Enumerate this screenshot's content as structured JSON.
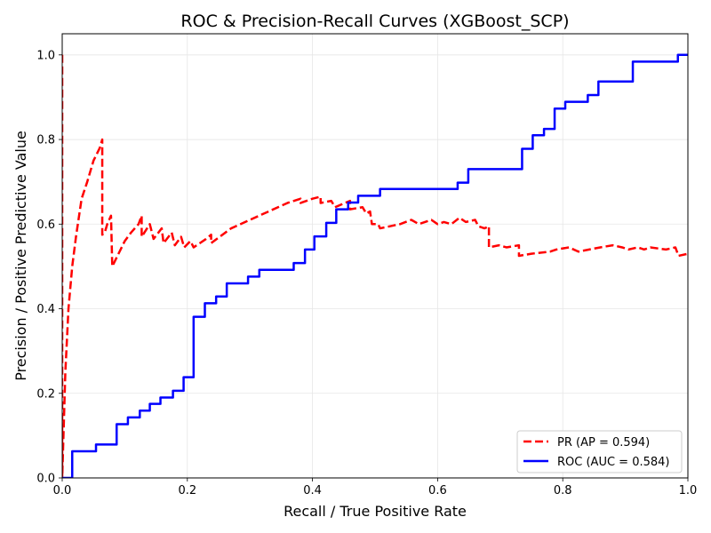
{
  "chart_data": {
    "type": "line",
    "title": "ROC & Precision-Recall Curves (XGBoost_SCP)",
    "xlabel": "Recall / True Positive Rate",
    "ylabel": "Precision / Positive Predictive Value",
    "xlim": [
      0.0,
      1.0
    ],
    "ylim": [
      0.0,
      1.05
    ],
    "xticks": [
      "0.0",
      "0.2",
      "0.4",
      "0.6",
      "0.8",
      "1.0"
    ],
    "yticks": [
      "0.0",
      "0.2",
      "0.4",
      "0.6",
      "0.8",
      "1.0"
    ],
    "grid": true,
    "legend_position": "lower right",
    "series": [
      {
        "name": "PR (AP = 0.594)",
        "color": "#ff0000",
        "style": "dashed",
        "points": [
          [
            0.0,
            1.0
          ],
          [
            0.0,
            0.0
          ],
          [
            0.005,
            0.25
          ],
          [
            0.01,
            0.4
          ],
          [
            0.016,
            0.5
          ],
          [
            0.022,
            0.57
          ],
          [
            0.031,
            0.66
          ],
          [
            0.04,
            0.7
          ],
          [
            0.05,
            0.75
          ],
          [
            0.06,
            0.78
          ],
          [
            0.064,
            0.8
          ],
          [
            0.064,
            0.575
          ],
          [
            0.068,
            0.58
          ],
          [
            0.072,
            0.6
          ],
          [
            0.078,
            0.62
          ],
          [
            0.08,
            0.5
          ],
          [
            0.09,
            0.53
          ],
          [
            0.1,
            0.56
          ],
          [
            0.11,
            0.58
          ],
          [
            0.122,
            0.6
          ],
          [
            0.127,
            0.62
          ],
          [
            0.127,
            0.57
          ],
          [
            0.14,
            0.6
          ],
          [
            0.146,
            0.565
          ],
          [
            0.159,
            0.59
          ],
          [
            0.162,
            0.555
          ],
          [
            0.175,
            0.58
          ],
          [
            0.18,
            0.55
          ],
          [
            0.19,
            0.57
          ],
          [
            0.195,
            0.545
          ],
          [
            0.205,
            0.56
          ],
          [
            0.21,
            0.545
          ],
          [
            0.23,
            0.565
          ],
          [
            0.238,
            0.575
          ],
          [
            0.238,
            0.555
          ],
          [
            0.27,
            0.59
          ],
          [
            0.3,
            0.61
          ],
          [
            0.33,
            0.63
          ],
          [
            0.36,
            0.65
          ],
          [
            0.381,
            0.66
          ],
          [
            0.381,
            0.65
          ],
          [
            0.4,
            0.66
          ],
          [
            0.413,
            0.665
          ],
          [
            0.413,
            0.65
          ],
          [
            0.43,
            0.655
          ],
          [
            0.436,
            0.64
          ],
          [
            0.46,
            0.655
          ],
          [
            0.46,
            0.635
          ],
          [
            0.48,
            0.64
          ],
          [
            0.486,
            0.625
          ],
          [
            0.492,
            0.63
          ],
          [
            0.495,
            0.6
          ],
          [
            0.505,
            0.6
          ],
          [
            0.508,
            0.59
          ],
          [
            0.54,
            0.6
          ],
          [
            0.558,
            0.61
          ],
          [
            0.57,
            0.6
          ],
          [
            0.59,
            0.61
          ],
          [
            0.6,
            0.6
          ],
          [
            0.61,
            0.605
          ],
          [
            0.622,
            0.6
          ],
          [
            0.635,
            0.615
          ],
          [
            0.645,
            0.605
          ],
          [
            0.66,
            0.61
          ],
          [
            0.665,
            0.595
          ],
          [
            0.675,
            0.59
          ],
          [
            0.682,
            0.595
          ],
          [
            0.682,
            0.545
          ],
          [
            0.698,
            0.55
          ],
          [
            0.71,
            0.545
          ],
          [
            0.73,
            0.55
          ],
          [
            0.73,
            0.525
          ],
          [
            0.75,
            0.53
          ],
          [
            0.78,
            0.535
          ],
          [
            0.79,
            0.54
          ],
          [
            0.81,
            0.545
          ],
          [
            0.825,
            0.535
          ],
          [
            0.86,
            0.545
          ],
          [
            0.88,
            0.55
          ],
          [
            0.895,
            0.545
          ],
          [
            0.905,
            0.54
          ],
          [
            0.92,
            0.545
          ],
          [
            0.93,
            0.54
          ],
          [
            0.94,
            0.545
          ],
          [
            0.965,
            0.54
          ],
          [
            0.98,
            0.545
          ],
          [
            0.985,
            0.525
          ],
          [
            1.0,
            0.53
          ]
        ]
      },
      {
        "name": "ROC (AUC = 0.584)",
        "color": "#0000ff",
        "style": "solid",
        "points": [
          [
            0.0,
            0.0
          ],
          [
            0.016,
            0.0
          ],
          [
            0.016,
            0.063
          ],
          [
            0.054,
            0.063
          ],
          [
            0.054,
            0.079
          ],
          [
            0.087,
            0.079
          ],
          [
            0.087,
            0.127
          ],
          [
            0.105,
            0.127
          ],
          [
            0.105,
            0.143
          ],
          [
            0.124,
            0.143
          ],
          [
            0.124,
            0.159
          ],
          [
            0.14,
            0.159
          ],
          [
            0.14,
            0.175
          ],
          [
            0.157,
            0.175
          ],
          [
            0.157,
            0.19
          ],
          [
            0.177,
            0.19
          ],
          [
            0.177,
            0.206
          ],
          [
            0.194,
            0.206
          ],
          [
            0.194,
            0.238
          ],
          [
            0.21,
            0.238
          ],
          [
            0.21,
            0.381
          ],
          [
            0.228,
            0.381
          ],
          [
            0.228,
            0.413
          ],
          [
            0.246,
            0.413
          ],
          [
            0.246,
            0.429
          ],
          [
            0.263,
            0.429
          ],
          [
            0.263,
            0.46
          ],
          [
            0.297,
            0.46
          ],
          [
            0.297,
            0.476
          ],
          [
            0.315,
            0.476
          ],
          [
            0.315,
            0.492
          ],
          [
            0.37,
            0.492
          ],
          [
            0.37,
            0.508
          ],
          [
            0.388,
            0.508
          ],
          [
            0.388,
            0.54
          ],
          [
            0.403,
            0.54
          ],
          [
            0.403,
            0.571
          ],
          [
            0.422,
            0.571
          ],
          [
            0.422,
            0.603
          ],
          [
            0.438,
            0.603
          ],
          [
            0.438,
            0.635
          ],
          [
            0.457,
            0.635
          ],
          [
            0.457,
            0.651
          ],
          [
            0.473,
            0.651
          ],
          [
            0.473,
            0.667
          ],
          [
            0.508,
            0.667
          ],
          [
            0.508,
            0.683
          ],
          [
            0.632,
            0.683
          ],
          [
            0.632,
            0.698
          ],
          [
            0.649,
            0.698
          ],
          [
            0.649,
            0.73
          ],
          [
            0.735,
            0.73
          ],
          [
            0.735,
            0.778
          ],
          [
            0.752,
            0.778
          ],
          [
            0.752,
            0.81
          ],
          [
            0.77,
            0.81
          ],
          [
            0.77,
            0.825
          ],
          [
            0.787,
            0.825
          ],
          [
            0.787,
            0.873
          ],
          [
            0.804,
            0.873
          ],
          [
            0.804,
            0.889
          ],
          [
            0.84,
            0.889
          ],
          [
            0.84,
            0.905
          ],
          [
            0.857,
            0.905
          ],
          [
            0.857,
            0.937
          ],
          [
            0.912,
            0.937
          ],
          [
            0.912,
            0.984
          ],
          [
            0.984,
            0.984
          ],
          [
            0.984,
            1.0
          ],
          [
            1.0,
            1.0
          ]
        ]
      }
    ]
  }
}
